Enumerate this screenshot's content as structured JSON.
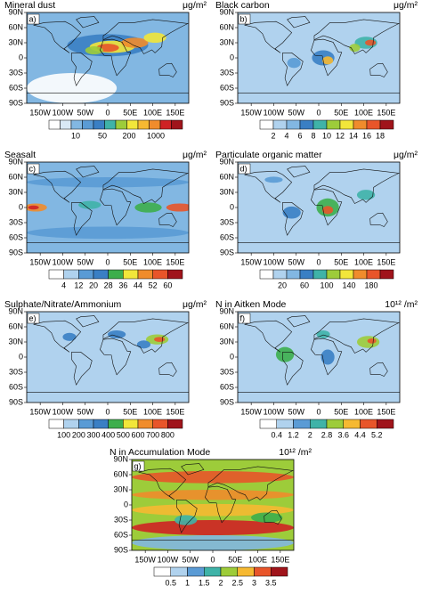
{
  "lon_ticks": [
    {
      "value": -150,
      "label": "150W"
    },
    {
      "value": -100,
      "label": "100W"
    },
    {
      "value": -50,
      "label": "50W"
    },
    {
      "value": 0,
      "label": "0"
    },
    {
      "value": 50,
      "label": "50E"
    },
    {
      "value": 100,
      "label": "100E"
    },
    {
      "value": 150,
      "label": "150E"
    }
  ],
  "lat_ticks": [
    {
      "value": 90,
      "label": "90N"
    },
    {
      "value": 60,
      "label": "60N"
    },
    {
      "value": 30,
      "label": "30N"
    },
    {
      "value": 0,
      "label": "0"
    },
    {
      "value": -30,
      "label": "30S"
    },
    {
      "value": -60,
      "label": "60S"
    },
    {
      "value": -90,
      "label": "90S"
    }
  ],
  "palette": [
    "#ffffff",
    "#d9e9f6",
    "#b0d2ee",
    "#82b7e2",
    "#5a9bd5",
    "#3a7fc4",
    "#3fb3a8",
    "#3dae4c",
    "#9dcc3a",
    "#f2e63a",
    "#f6b932",
    "#f08c2c",
    "#e8552a",
    "#cf2225",
    "#a0141b"
  ],
  "panels": [
    {
      "letter": "a)",
      "title": "Mineral dust",
      "unit": "μg/m²",
      "colorbar": [
        "10",
        "50",
        "200",
        "1000"
      ]
    },
    {
      "letter": "b)",
      "title": "Black carbon",
      "unit": "μg/m²",
      "colorbar": [
        "2",
        "4",
        "6",
        "8",
        "10",
        "12",
        "14",
        "16",
        "18"
      ]
    },
    {
      "letter": "c)",
      "title": "Seasalt",
      "unit": "μg/m²",
      "colorbar": [
        "4",
        "12",
        "20",
        "28",
        "36",
        "44",
        "52",
        "60"
      ]
    },
    {
      "letter": "d)",
      "title": "Particulate organic matter",
      "unit": "μg/m²",
      "colorbar": [
        "20",
        "60",
        "100",
        "140",
        "180"
      ]
    },
    {
      "letter": "e)",
      "title": "Sulphate/Nitrate/Ammonium",
      "unit": "μg/m²",
      "colorbar": [
        "100",
        "200",
        "300",
        "400",
        "500",
        "600",
        "700",
        "800"
      ]
    },
    {
      "letter": "f)",
      "title": "N in Aitken Mode",
      "unit": "10¹² /m²",
      "colorbar": [
        "0.4",
        "1.2",
        "2",
        "2.8",
        "3.6",
        "4.4",
        "5.2"
      ]
    },
    {
      "letter": "g)",
      "title": "N in Accumulation Mode",
      "unit": "10¹² /m²",
      "colorbar": [
        "0.5",
        "1",
        "1.5",
        "2",
        "2.5",
        "3",
        "3.5"
      ]
    }
  ]
}
